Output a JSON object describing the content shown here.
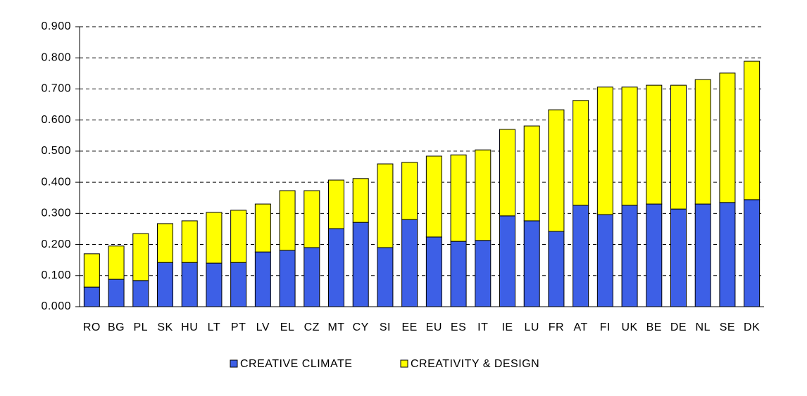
{
  "chart_data": {
    "type": "stacked_bar",
    "categories": [
      "RO",
      "BG",
      "PL",
      "SK",
      "HU",
      "LT",
      "PT",
      "LV",
      "EL",
      "CZ",
      "MT",
      "CY",
      "SI",
      "EE",
      "EU",
      "ES",
      "IT",
      "IE",
      "LU",
      "FR",
      "AT",
      "FI",
      "UK",
      "BE",
      "DE",
      "NL",
      "SE",
      "DK"
    ],
    "series": [
      {
        "name": "CREATIVE CLIMATE",
        "color": "#3d5fe6",
        "values": [
          0.063,
          0.088,
          0.084,
          0.142,
          0.142,
          0.14,
          0.142,
          0.176,
          0.181,
          0.19,
          0.251,
          0.271,
          0.19,
          0.28,
          0.224,
          0.21,
          0.213,
          0.292,
          0.276,
          0.242,
          0.326,
          0.296,
          0.326,
          0.33,
          0.314,
          0.33,
          0.335,
          0.344
        ]
      },
      {
        "name": "CREATIVITY & DESIGN",
        "color": "#ffff00",
        "values": [
          0.107,
          0.107,
          0.151,
          0.125,
          0.134,
          0.163,
          0.168,
          0.154,
          0.192,
          0.183,
          0.156,
          0.141,
          0.269,
          0.184,
          0.26,
          0.278,
          0.291,
          0.278,
          0.305,
          0.391,
          0.337,
          0.41,
          0.38,
          0.382,
          0.398,
          0.4,
          0.416,
          0.445
        ]
      }
    ],
    "ylim": [
      0,
      0.9
    ],
    "yticks": [
      {
        "value": 0,
        "label": "0.000"
      },
      {
        "value": 0.1,
        "label": "0.100"
      },
      {
        "value": 0.2,
        "label": "0.200"
      },
      {
        "value": 0.3,
        "label": "0.300"
      },
      {
        "value": 0.4,
        "label": "0.400"
      },
      {
        "value": 0.5,
        "label": "0.500"
      },
      {
        "value": 0.6,
        "label": "0.600"
      },
      {
        "value": 0.7,
        "label": "0.700"
      },
      {
        "value": 0.8,
        "label": "0.800"
      },
      {
        "value": 0.9,
        "label": "0.900"
      }
    ],
    "grid": true,
    "legend": "bottom"
  }
}
